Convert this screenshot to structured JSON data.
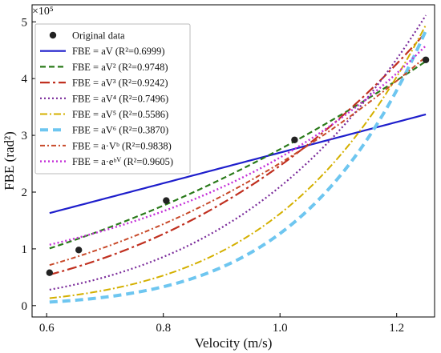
{
  "chart_data": {
    "type": "scatter",
    "xlabel": "Velocity (m/s)",
    "ylabel": "FBE (rad²)",
    "y_multiplier": "×10⁵",
    "xlim": [
      0.575,
      1.265
    ],
    "ylim": [
      -0.2,
      5.3
    ],
    "xticks": [
      0.6,
      0.8,
      1.0,
      1.2
    ],
    "xtick_labels": [
      "0.6",
      "0.8",
      "1.0",
      "1.2"
    ],
    "yticks": [
      0,
      1,
      2,
      3,
      4,
      5
    ],
    "ytick_labels": [
      "0",
      "1",
      "2",
      "3",
      "4",
      "5"
    ],
    "legend_position": "top-left",
    "grid": false,
    "points": {
      "name": "Original data",
      "color": "#222222",
      "x": [
        0.605,
        0.655,
        0.805,
        1.025,
        1.25
      ],
      "y": [
        0.58,
        0.98,
        1.85,
        2.92,
        4.33
      ]
    },
    "series": [
      {
        "name": "FBE = aV (R²=0.6999)",
        "type": "linear",
        "a": 2.695,
        "color": "#1f1fcc",
        "dash": "",
        "width": 2.2
      },
      {
        "name": "FBE = aV² (R²=0.9748)",
        "type": "power",
        "a": 2.755,
        "b": 2,
        "color": "#2a7a1a",
        "dash": "7,4",
        "width": 2.2
      },
      {
        "name": "FBE = aV³ (R²=0.9242)",
        "type": "power",
        "a": 2.465,
        "b": 3,
        "color": "#c03020",
        "dash": "12,4,3,4",
        "width": 2.2
      },
      {
        "name": "FBE = aV⁴ (R²=0.7496)",
        "type": "power",
        "a": 2.095,
        "b": 4,
        "color": "#7a2a9a",
        "dash": "2,3",
        "width": 2.2
      },
      {
        "name": "FBE = aV⁵ (R²=0.5586)",
        "type": "power",
        "a": 1.62,
        "b": 5,
        "color": "#d4b000",
        "dash": "9,3,2,3",
        "width": 2
      },
      {
        "name": "FBE = aV⁶ (R²=0.3870)",
        "type": "power",
        "a": 1.27,
        "b": 6,
        "color": "#6ec6f0",
        "dash": "10,6",
        "width": 4
      },
      {
        "name": "FBE = a·Vᵇ (R²=0.9838)",
        "type": "power",
        "a": 2.51,
        "b": 2.5,
        "color": "#c84a2a",
        "dash": "6,3,2,3",
        "width": 2
      },
      {
        "name": "FBE = a·eᵇⱽ (R²=0.9605)",
        "type": "exp",
        "a": 0.275,
        "b": 2.25,
        "color": "#c430d8",
        "dash": "2,3",
        "width": 2.4
      }
    ]
  }
}
